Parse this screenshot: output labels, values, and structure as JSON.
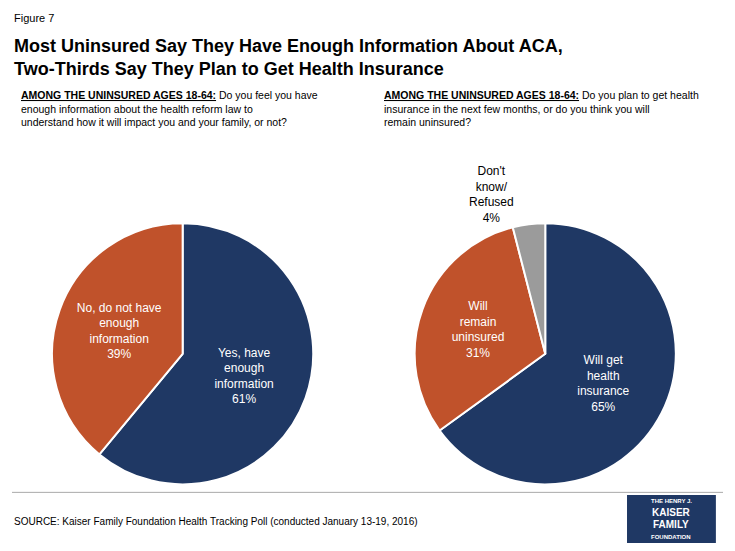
{
  "title": "Most Uninsured Say They Have Enough Information About ACA,\nTwo-Thirds Say They Plan to Get Health Insurance",
  "annotations": [
    {
      "text": "Figure 7"
    },
    {
      "text": "SOURCE: Kaiser Family Foundation Health Tracking Poll (conducted January 13-19, 2016)"
    },
    {
      "text": [
        "THE HENRY J.",
        "KAISER",
        "FAMILY",
        "FOUNDATION"
      ],
      "color": "#1f3864"
    }
  ],
  "chart_data": [
    {
      "type": "pie",
      "title": "AMONG THE UNINSURED AGES 18-64:",
      "subtitle": "Do you feel you have enough information about the health reform law to understand how it will impact you and your family, or not?",
      "categories": [
        "Yes, have\nenough\ninformation",
        "No, do not have\nenough\ninformation"
      ],
      "values": [
        61,
        39
      ],
      "value_labels": [
        "61%",
        "39%"
      ],
      "data_labels": true,
      "colors": [
        "#1f3864",
        "#c0522b"
      ]
    },
    {
      "type": "pie",
      "title": "AMONG THE UNINSURED AGES 18-64:",
      "subtitle": "Do you plan to get health insurance in the next few months, or do you think you will remain uninsured?",
      "categories": [
        "Will get\nhealth\ninsurance",
        "Will\nremain\nuninsured",
        "Don't\nknow/\nRefused"
      ],
      "values": [
        65,
        31,
        4
      ],
      "value_labels": [
        "65%",
        "31%",
        "4%"
      ],
      "data_labels": true,
      "colors": [
        "#1f3864",
        "#c0522b",
        "#9b9b9b"
      ]
    }
  ]
}
